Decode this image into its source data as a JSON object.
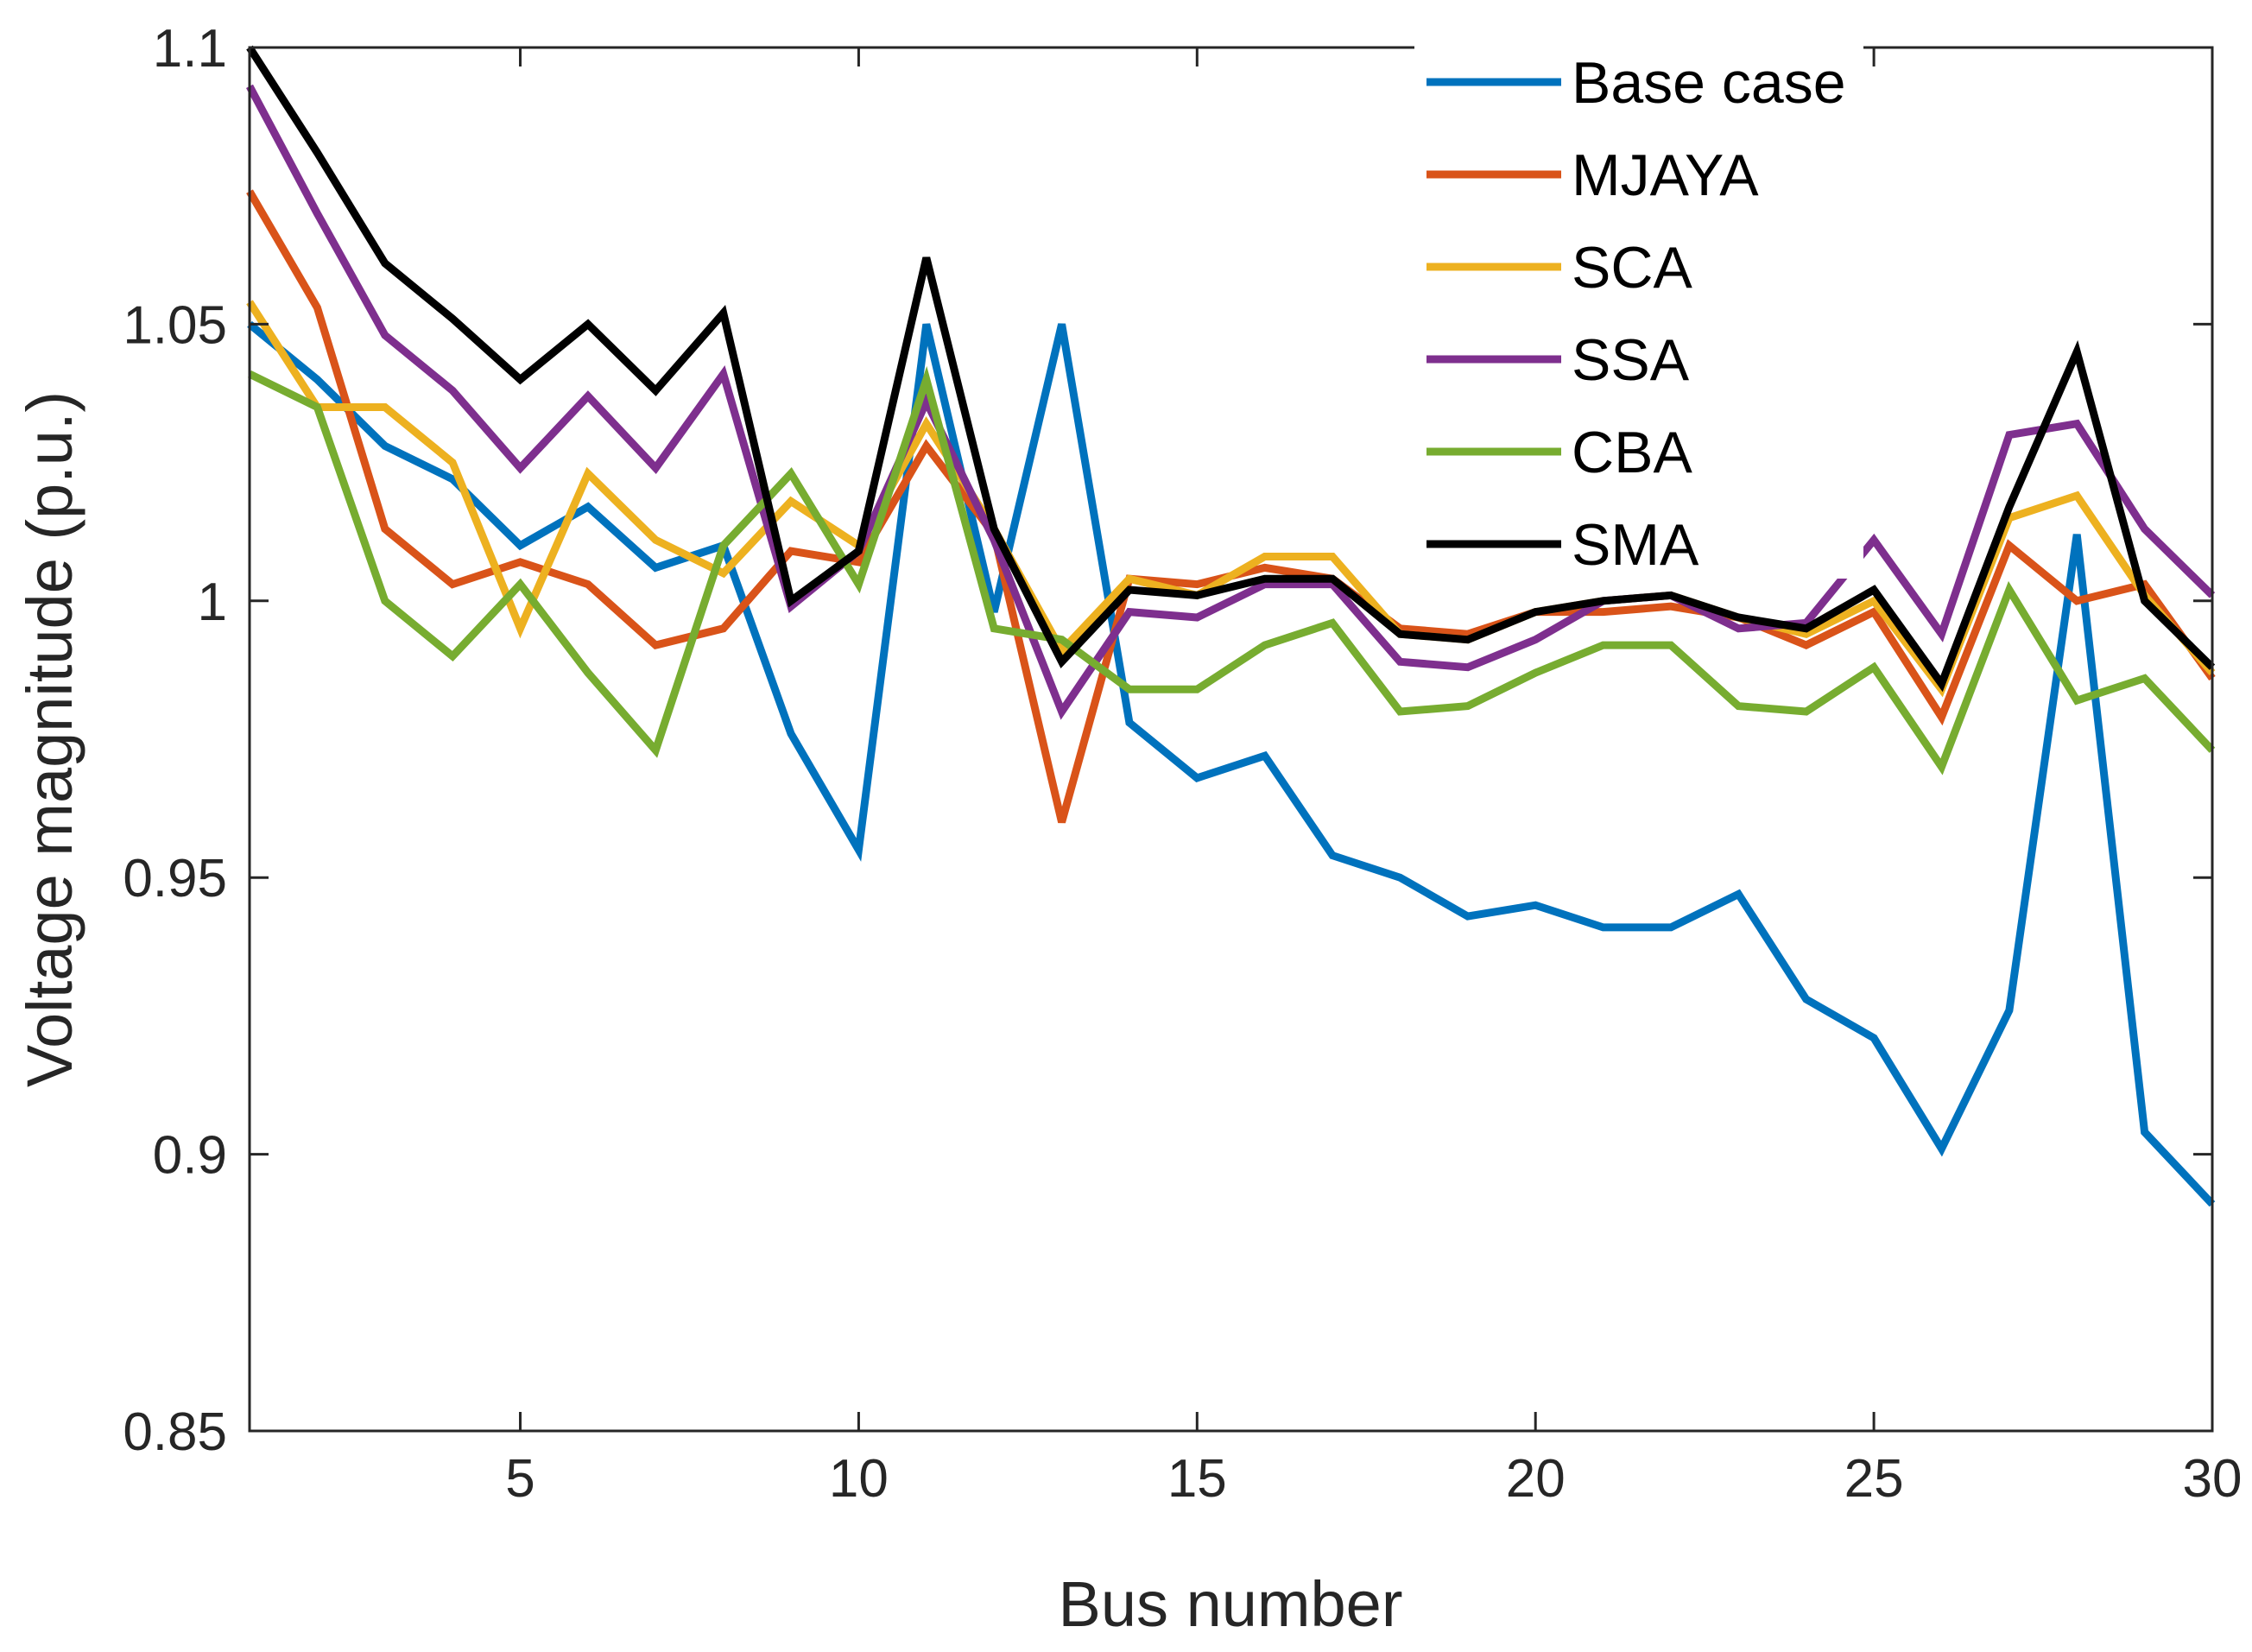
{
  "chart_data": {
    "type": "line",
    "title": "",
    "xlabel": "Bus number",
    "ylabel": "Voltage magnitude (p.u.)",
    "xlim": [
      1,
      30
    ],
    "ylim": [
      0.85,
      1.1
    ],
    "xticks": [
      5,
      10,
      15,
      20,
      25,
      30
    ],
    "xtick_labels": [
      "5",
      "10",
      "15",
      "20",
      "25",
      "30"
    ],
    "yticks": [
      0.85,
      0.9,
      0.95,
      1.0,
      1.05,
      1.1
    ],
    "ytick_labels": [
      "0.85",
      "0.9",
      "0.95",
      "1",
      "1.05",
      "1.1"
    ],
    "grid": false,
    "legend_position": "top-right",
    "x": [
      1,
      2,
      3,
      4,
      5,
      6,
      7,
      8,
      9,
      10,
      11,
      12,
      13,
      14,
      15,
      16,
      17,
      18,
      19,
      20,
      21,
      22,
      23,
      24,
      25,
      26,
      27,
      28,
      29,
      30
    ],
    "series": [
      {
        "name": "Base case",
        "color": "#0072BD",
        "values": [
          1.05,
          1.04,
          1.028,
          1.022,
          1.01,
          1.017,
          1.006,
          1.01,
          0.976,
          0.955,
          1.05,
          0.998,
          1.05,
          0.978,
          0.968,
          0.972,
          0.954,
          0.95,
          0.943,
          0.945,
          0.941,
          0.941,
          0.947,
          0.928,
          0.921,
          0.901,
          0.926,
          1.012,
          0.904,
          0.891
        ]
      },
      {
        "name": "MJAYA",
        "color": "#D95319",
        "values": [
          1.074,
          1.053,
          1.013,
          1.003,
          1.007,
          1.003,
          0.992,
          0.995,
          1.009,
          1.007,
          1.028,
          1.012,
          0.96,
          1.004,
          1.003,
          1.006,
          1.004,
          0.995,
          0.994,
          0.998,
          0.998,
          0.999,
          0.997,
          0.992,
          0.998,
          0.979,
          1.01,
          1.0,
          1.003,
          0.986
        ]
      },
      {
        "name": "SCA",
        "color": "#EDB120",
        "values": [
          1.054,
          1.035,
          1.035,
          1.025,
          0.995,
          1.023,
          1.011,
          1.005,
          1.018,
          1.01,
          1.032,
          1.013,
          0.991,
          1.004,
          1.001,
          1.008,
          1.008,
          0.994,
          0.993,
          0.998,
          1.0,
          1.001,
          0.997,
          0.994,
          1.0,
          0.984,
          1.015,
          1.019,
          1.001,
          0.987
        ]
      },
      {
        "name": "SSA",
        "color": "#7E2F8E",
        "values": [
          1.093,
          1.07,
          1.048,
          1.038,
          1.024,
          1.037,
          1.024,
          1.041,
          0.999,
          1.009,
          1.036,
          1.011,
          0.98,
          0.998,
          0.997,
          1.003,
          1.003,
          0.989,
          0.988,
          0.993,
          1.0,
          1.001,
          0.995,
          0.996,
          1.011,
          0.994,
          1.03,
          1.032,
          1.013,
          1.001
        ]
      },
      {
        "name": "CBA",
        "color": "#77AC30",
        "values": [
          1.041,
          1.035,
          1.0,
          0.99,
          1.003,
          0.987,
          0.973,
          1.01,
          1.023,
          1.003,
          1.04,
          0.995,
          0.993,
          0.984,
          0.984,
          0.992,
          0.996,
          0.98,
          0.981,
          0.987,
          0.992,
          0.992,
          0.981,
          0.98,
          0.988,
          0.97,
          1.002,
          0.982,
          0.986,
          0.973
        ]
      },
      {
        "name": "SMA",
        "color": "#000000",
        "values": [
          1.1,
          1.081,
          1.061,
          1.051,
          1.04,
          1.05,
          1.038,
          1.052,
          1.0,
          1.009,
          1.062,
          1.013,
          0.989,
          1.002,
          1.001,
          1.004,
          1.004,
          0.994,
          0.993,
          0.998,
          1.0,
          1.001,
          0.997,
          0.995,
          1.002,
          0.985,
          1.017,
          1.045,
          1.0,
          0.988
        ]
      }
    ]
  }
}
